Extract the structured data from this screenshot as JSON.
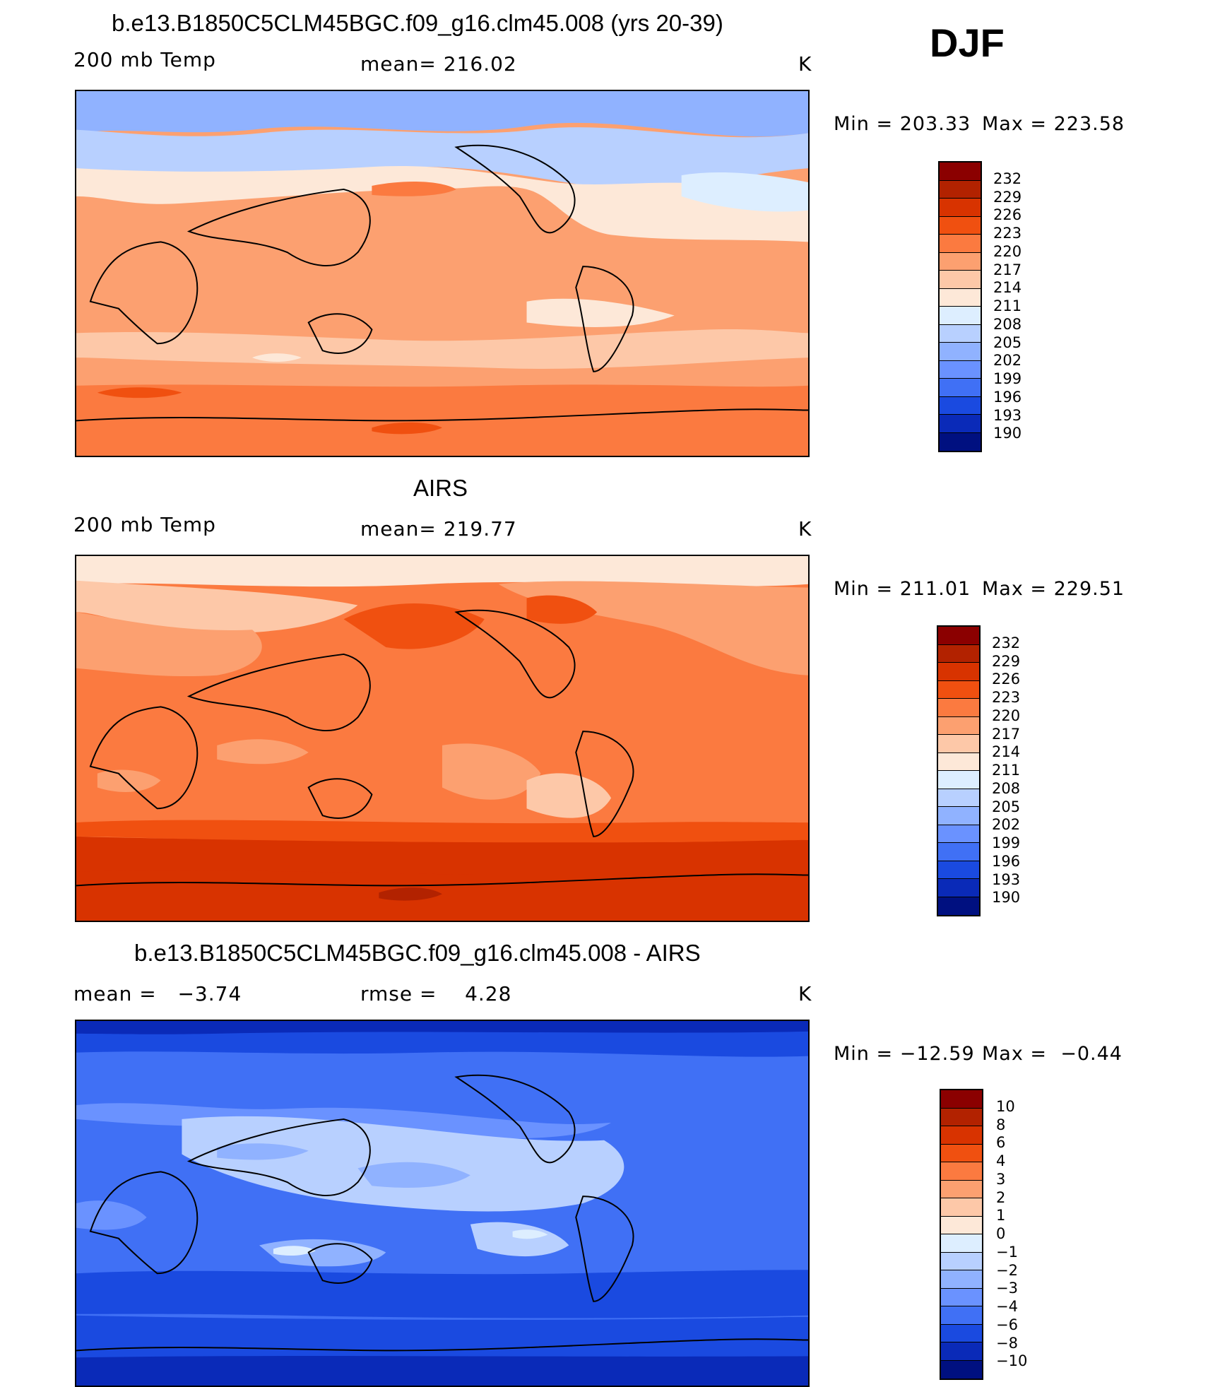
{
  "djf_label": "DJF",
  "panels": [
    {
      "title": "b.e13.B1850C5CLM45BGC.f09_g16.clm45.008 (yrs 20-39)",
      "left_label": "200 mb Temp",
      "center_label": "mean= 216.02",
      "units": "K",
      "min_text": "Min = 203.33",
      "max_text": "Max = 223.58",
      "colorbar": {
        "labels": [
          "232",
          "229",
          "226",
          "223",
          "220",
          "217",
          "214",
          "211",
          "208",
          "205",
          "202",
          "199",
          "196",
          "193",
          "190"
        ],
        "colors": [
          "#8b0000",
          "#b22200",
          "#d83300",
          "#f05010",
          "#fb7a40",
          "#fca070",
          "#fdc8a8",
          "#fde8d8",
          "#ddeeff",
          "#b8d0ff",
          "#90b2ff",
          "#6a92ff",
          "#4070f5",
          "#1a4ae0",
          "#0a2ab8",
          "#001080"
        ]
      }
    },
    {
      "title": "AIRS",
      "left_label": "200 mb Temp",
      "center_label": "mean= 219.77",
      "units": "K",
      "min_text": "Min = 211.01",
      "max_text": "Max = 229.51",
      "colorbar": {
        "labels": [
          "232",
          "229",
          "226",
          "223",
          "220",
          "217",
          "214",
          "211",
          "208",
          "205",
          "202",
          "199",
          "196",
          "193",
          "190"
        ],
        "colors": [
          "#8b0000",
          "#b22200",
          "#d83300",
          "#f05010",
          "#fb7a40",
          "#fca070",
          "#fdc8a8",
          "#fde8d8",
          "#ddeeff",
          "#b8d0ff",
          "#90b2ff",
          "#6a92ff",
          "#4070f5",
          "#1a4ae0",
          "#0a2ab8",
          "#001080"
        ]
      }
    },
    {
      "title": "b.e13.B1850C5CLM45BGC.f09_g16.clm45.008 - AIRS",
      "left_label": "mean =   −3.74",
      "center_label": "rmse =    4.28",
      "units": "K",
      "min_text": "Min = −12.59",
      "max_text": "Max =  −0.44",
      "colorbar": {
        "labels": [
          "10",
          "8",
          "6",
          "4",
          "3",
          "2",
          "1",
          "0",
          "−1",
          "−2",
          "−3",
          "−4",
          "−6",
          "−8",
          "−10"
        ],
        "colors": [
          "#8b0000",
          "#b22200",
          "#d83300",
          "#f05010",
          "#fb7a40",
          "#fca070",
          "#fdc8a8",
          "#fde8d8",
          "#ddeeff",
          "#b8d0ff",
          "#90b2ff",
          "#6a92ff",
          "#4070f5",
          "#1a4ae0",
          "#0a2ab8",
          "#001080"
        ]
      }
    }
  ]
}
